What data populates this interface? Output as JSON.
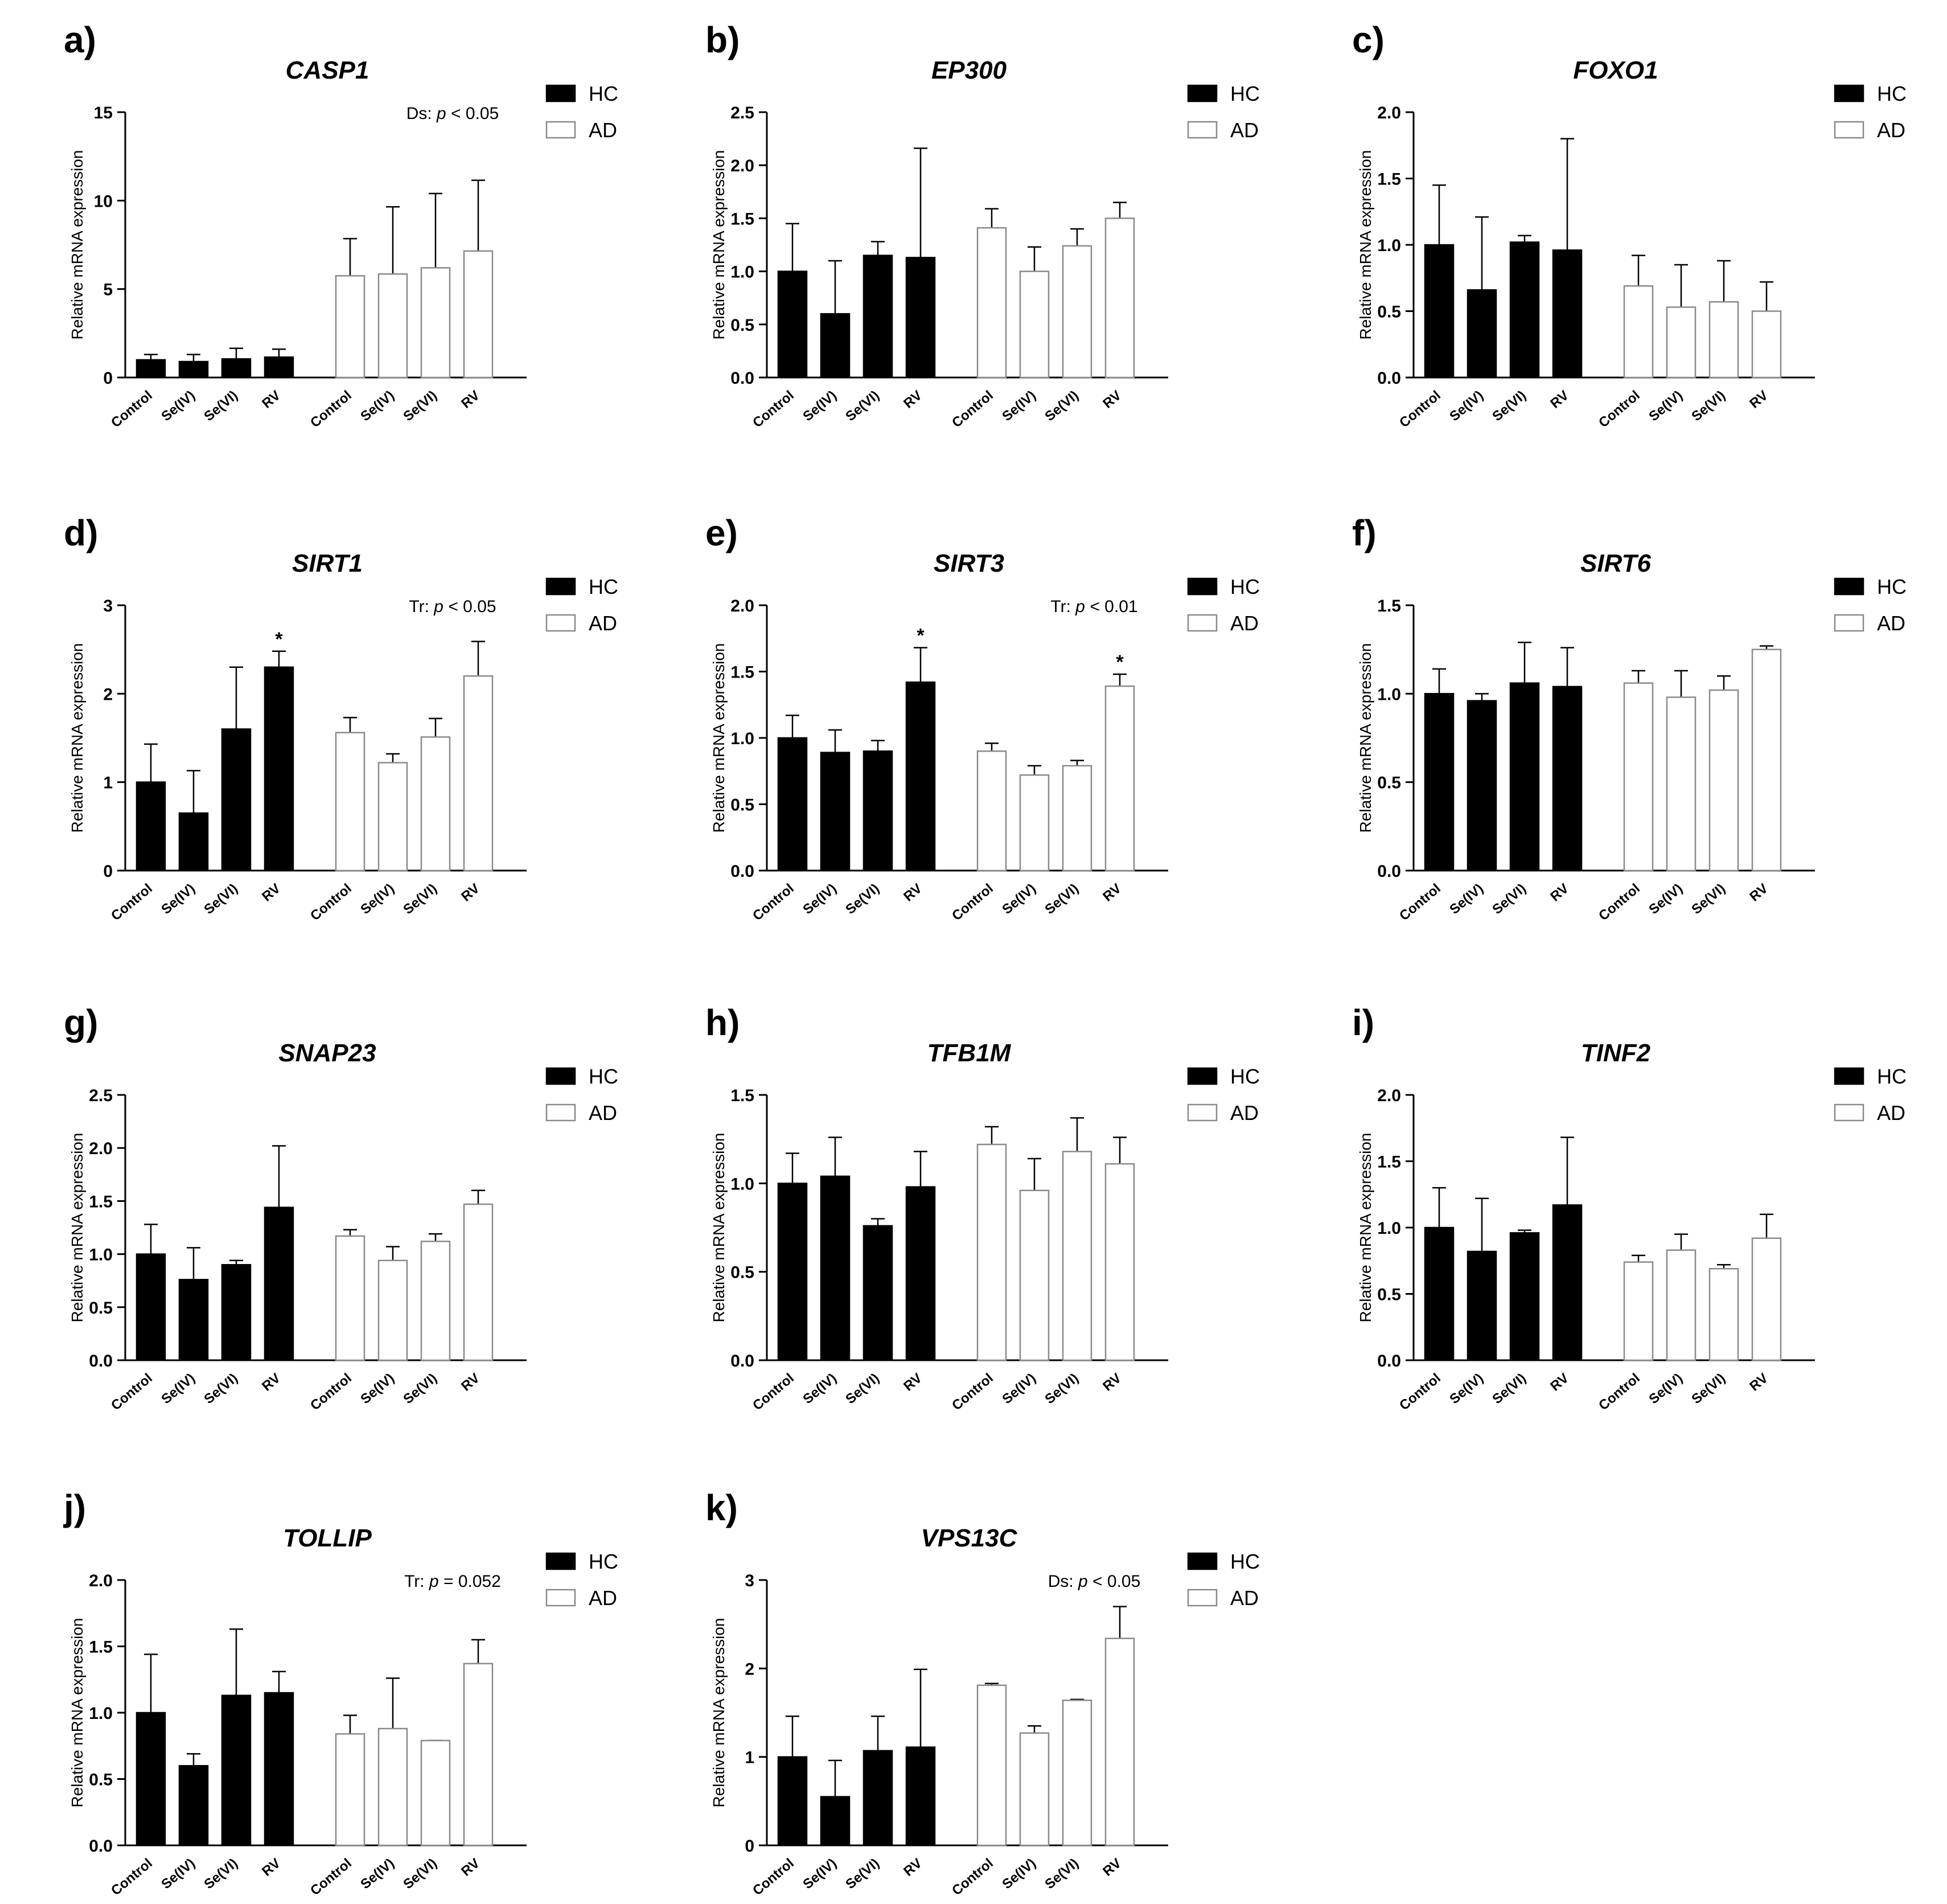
{
  "figure": {
    "ylabel": "Relative mRNA expression",
    "legend": [
      {
        "name": "HC",
        "fill": "#000000"
      },
      {
        "name": "AD",
        "fill": "#ffffff"
      }
    ],
    "colors": {
      "hc_fill": "#000000",
      "ad_fill": "#ffffff",
      "axis": "#000000"
    }
  },
  "chart_data": [
    {
      "panel": "a)",
      "type": "bar",
      "title": "CASP1",
      "xlabel": "",
      "ylabel": "Relative mRNA expression",
      "categories": [
        "Control",
        "Se(IV)",
        "Se(VI)",
        "RV"
      ],
      "ylim": [
        0,
        15
      ],
      "yticks": [
        "0",
        "5",
        "10",
        "15"
      ],
      "series": [
        {
          "name": "HC",
          "values": [
            1.0,
            0.9,
            1.05,
            1.15
          ],
          "errors": [
            0.3,
            0.4,
            0.6,
            0.45
          ]
        },
        {
          "name": "AD",
          "values": [
            5.75,
            5.85,
            6.2,
            7.15
          ],
          "errors": [
            2.1,
            3.8,
            4.2,
            4.0
          ]
        }
      ],
      "annotation": {
        "prefix": "Ds: ",
        "p": "p",
        "suffix": " < 0.05"
      },
      "stars": []
    },
    {
      "panel": "b)",
      "type": "bar",
      "title": "EP300",
      "xlabel": "",
      "ylabel": "Relative mRNA expression",
      "categories": [
        "Control",
        "Se(IV)",
        "Se(VI)",
        "RV"
      ],
      "ylim": [
        0,
        2.5
      ],
      "yticks": [
        "0.0",
        "0.5",
        "1.0",
        "1.5",
        "2.0",
        "2.5"
      ],
      "series": [
        {
          "name": "HC",
          "values": [
            1.0,
            0.6,
            1.15,
            1.13
          ],
          "errors": [
            0.45,
            0.5,
            0.13,
            1.03
          ]
        },
        {
          "name": "AD",
          "values": [
            1.41,
            1.0,
            1.24,
            1.5
          ],
          "errors": [
            0.18,
            0.23,
            0.16,
            0.15
          ]
        }
      ],
      "stars": []
    },
    {
      "panel": "c)",
      "type": "bar",
      "title": "FOXO1",
      "xlabel": "",
      "ylabel": "Relative mRNA expression",
      "categories": [
        "Control",
        "Se(IV)",
        "Se(VI)",
        "RV"
      ],
      "ylim": [
        0,
        2.0
      ],
      "yticks": [
        "0.0",
        "0.5",
        "1.0",
        "1.5",
        "2.0"
      ],
      "series": [
        {
          "name": "HC",
          "values": [
            1.0,
            0.66,
            1.02,
            0.96
          ],
          "errors": [
            0.45,
            0.55,
            0.05,
            0.84
          ]
        },
        {
          "name": "AD",
          "values": [
            0.69,
            0.53,
            0.57,
            0.5
          ],
          "errors": [
            0.23,
            0.32,
            0.31,
            0.22
          ]
        }
      ],
      "stars": []
    },
    {
      "panel": "d)",
      "type": "bar",
      "title": "SIRT1",
      "xlabel": "",
      "ylabel": "Relative mRNA expression",
      "categories": [
        "Control",
        "Se(IV)",
        "Se(VI)",
        "RV"
      ],
      "ylim": [
        0,
        3
      ],
      "yticks": [
        "0",
        "1",
        "2",
        "3"
      ],
      "series": [
        {
          "name": "HC",
          "values": [
            1.0,
            0.65,
            1.6,
            2.3
          ],
          "errors": [
            0.43,
            0.48,
            0.7,
            0.18
          ]
        },
        {
          "name": "AD",
          "values": [
            1.56,
            1.22,
            1.51,
            2.2
          ],
          "errors": [
            0.17,
            0.1,
            0.21,
            0.39
          ]
        }
      ],
      "annotation": {
        "prefix": "Tr: ",
        "p": "p",
        "suffix": " < 0.05"
      },
      "stars": [
        {
          "series": "HC",
          "category": "RV",
          "text": "*"
        }
      ]
    },
    {
      "panel": "e)",
      "type": "bar",
      "title": "SIRT3",
      "xlabel": "",
      "ylabel": "Relative mRNA expression",
      "categories": [
        "Control",
        "Se(IV)",
        "Se(VI)",
        "RV"
      ],
      "ylim": [
        0,
        2.0
      ],
      "yticks": [
        "0.0",
        "0.5",
        "1.0",
        "1.5",
        "2.0"
      ],
      "series": [
        {
          "name": "HC",
          "values": [
            1.0,
            0.89,
            0.9,
            1.42
          ],
          "errors": [
            0.17,
            0.17,
            0.08,
            0.26
          ]
        },
        {
          "name": "AD",
          "values": [
            0.9,
            0.72,
            0.79,
            1.39
          ],
          "errors": [
            0.06,
            0.07,
            0.04,
            0.09
          ]
        }
      ],
      "annotation": {
        "prefix": "Tr: ",
        "p": "p",
        "suffix": " < 0.01"
      },
      "stars": [
        {
          "series": "HC",
          "category": "RV",
          "text": "*"
        },
        {
          "series": "AD",
          "category": "RV",
          "text": "*"
        }
      ]
    },
    {
      "panel": "f)",
      "type": "bar",
      "title": "SIRT6",
      "xlabel": "",
      "ylabel": "Relative mRNA expression",
      "categories": [
        "Control",
        "Se(IV)",
        "Se(VI)",
        "RV"
      ],
      "ylim": [
        0,
        1.5
      ],
      "yticks": [
        "0.0",
        "0.5",
        "1.0",
        "1.5"
      ],
      "series": [
        {
          "name": "HC",
          "values": [
            1.0,
            0.96,
            1.06,
            1.04
          ],
          "errors": [
            0.14,
            0.04,
            0.23,
            0.22
          ]
        },
        {
          "name": "AD",
          "values": [
            1.06,
            0.98,
            1.02,
            1.25
          ],
          "errors": [
            0.07,
            0.15,
            0.08,
            0.02
          ]
        }
      ],
      "stars": []
    },
    {
      "panel": "g)",
      "type": "bar",
      "title": "SNAP23",
      "xlabel": "",
      "ylabel": "Relative mRNA expression",
      "categories": [
        "Control",
        "Se(IV)",
        "Se(VI)",
        "RV"
      ],
      "ylim": [
        0,
        2.5
      ],
      "yticks": [
        "0.0",
        "0.5",
        "1.0",
        "1.5",
        "2.0",
        "2.5"
      ],
      "series": [
        {
          "name": "HC",
          "values": [
            1.0,
            0.76,
            0.9,
            1.44
          ],
          "errors": [
            0.28,
            0.3,
            0.04,
            0.58
          ]
        },
        {
          "name": "AD",
          "values": [
            1.17,
            0.94,
            1.12,
            1.47
          ],
          "errors": [
            0.06,
            0.13,
            0.07,
            0.13
          ]
        }
      ],
      "stars": []
    },
    {
      "panel": "h)",
      "type": "bar",
      "title": "TFB1M",
      "xlabel": "",
      "ylabel": "Relative mRNA expression",
      "categories": [
        "Control",
        "Se(IV)",
        "Se(VI)",
        "RV"
      ],
      "ylim": [
        0,
        1.5
      ],
      "yticks": [
        "0.0",
        "0.5",
        "1.0",
        "1.5"
      ],
      "series": [
        {
          "name": "HC",
          "values": [
            1.0,
            1.04,
            0.76,
            0.98
          ],
          "errors": [
            0.17,
            0.22,
            0.04,
            0.2
          ]
        },
        {
          "name": "AD",
          "values": [
            1.22,
            0.96,
            1.18,
            1.11
          ],
          "errors": [
            0.1,
            0.18,
            0.19,
            0.15
          ]
        }
      ],
      "stars": []
    },
    {
      "panel": "i)",
      "type": "bar",
      "title": "TINF2",
      "xlabel": "",
      "ylabel": "Relative mRNA expression",
      "categories": [
        "Control",
        "Se(IV)",
        "Se(VI)",
        "RV"
      ],
      "ylim": [
        0,
        2.0
      ],
      "yticks": [
        "0.0",
        "0.5",
        "1.0",
        "1.5",
        "2.0"
      ],
      "series": [
        {
          "name": "HC",
          "values": [
            1.0,
            0.82,
            0.96,
            1.17
          ],
          "errors": [
            0.3,
            0.4,
            0.02,
            0.51
          ]
        },
        {
          "name": "AD",
          "values": [
            0.74,
            0.83,
            0.69,
            0.92
          ],
          "errors": [
            0.05,
            0.12,
            0.03,
            0.18
          ]
        }
      ],
      "stars": []
    },
    {
      "panel": "j)",
      "type": "bar",
      "title": "TOLLIP",
      "xlabel": "",
      "ylabel": "Relative mRNA expression",
      "categories": [
        "Control",
        "Se(IV)",
        "Se(VI)",
        "RV"
      ],
      "ylim": [
        0,
        2.0
      ],
      "yticks": [
        "0.0",
        "0.5",
        "1.0",
        "1.5",
        "2.0"
      ],
      "series": [
        {
          "name": "HC",
          "values": [
            1.0,
            0.6,
            1.13,
            1.15
          ],
          "errors": [
            0.44,
            0.09,
            0.5,
            0.16
          ]
        },
        {
          "name": "AD",
          "values": [
            0.84,
            0.88,
            0.79,
            1.37
          ],
          "errors": [
            0.14,
            0.38,
            0.0,
            0.18
          ]
        }
      ],
      "annotation": {
        "prefix": "Tr: ",
        "p": "p",
        "suffix": " = 0.052"
      },
      "stars": []
    },
    {
      "panel": "k)",
      "type": "bar",
      "title": "VPS13C",
      "xlabel": "",
      "ylabel": "Relative mRNA expression",
      "categories": [
        "Control",
        "Se(IV)",
        "Se(VI)",
        "RV"
      ],
      "ylim": [
        0,
        3
      ],
      "yticks": [
        "0",
        "1",
        "2",
        "3"
      ],
      "series": [
        {
          "name": "HC",
          "values": [
            1.0,
            0.55,
            1.07,
            1.11
          ],
          "errors": [
            0.46,
            0.41,
            0.39,
            0.88
          ]
        },
        {
          "name": "AD",
          "values": [
            1.81,
            1.27,
            1.64,
            2.34
          ],
          "errors": [
            0.02,
            0.08,
            0.01,
            0.36
          ]
        }
      ],
      "annotation": {
        "prefix": "Ds: ",
        "p": "p",
        "suffix": " < 0.05"
      },
      "stars": []
    }
  ]
}
